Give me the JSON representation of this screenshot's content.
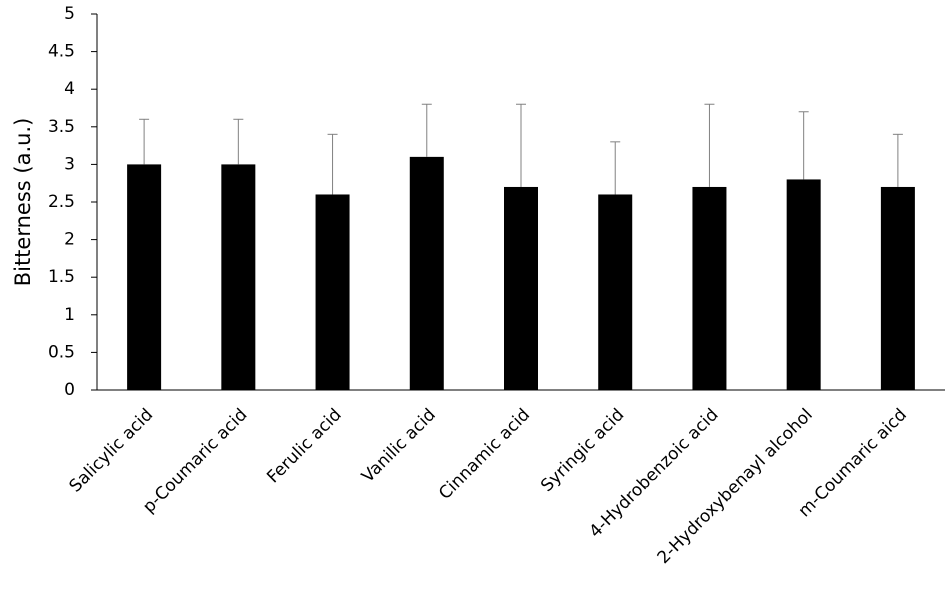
{
  "chart_data": {
    "type": "bar",
    "y_label": "Bitterness (a.u.)",
    "categories": [
      "Salicylic acid",
      "p-Coumaric acid",
      "Ferulic acid",
      "Vanilic acid",
      "Cinnamic acid",
      "Syringic acid",
      "4-Hydrobenzoic acid",
      "2-Hydroxybenayl alcohol",
      "m-Coumaric aicd"
    ],
    "values": [
      3.0,
      3.0,
      2.6,
      3.1,
      2.7,
      2.6,
      2.7,
      2.8,
      2.7
    ],
    "errors": [
      0.6,
      0.6,
      0.8,
      0.7,
      1.1,
      0.7,
      1.1,
      0.9,
      0.7
    ],
    "color": "#000000",
    "error_color": "#808080",
    "ylim": [
      0,
      5
    ],
    "yticks": [
      0,
      0.5,
      1,
      1.5,
      2,
      2.5,
      3,
      3.5,
      4,
      4.5,
      5
    ],
    "grid": false
  }
}
